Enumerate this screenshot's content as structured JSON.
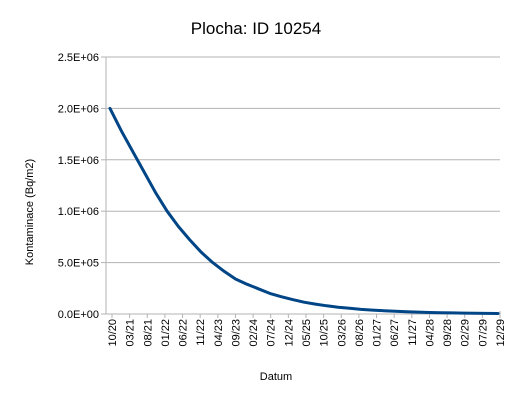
{
  "chart_data": {
    "type": "line",
    "title": "Plocha: ID 10254",
    "xlabel": "Datum",
    "ylabel": "Kontaminace (Bq/m2)",
    "ylim": [
      0,
      2500000
    ],
    "y_ticks": [
      "0.0E+00",
      "5.0E+05",
      "1.0E+06",
      "1.5E+06",
      "2.0E+06",
      "2.5E+06"
    ],
    "y_tick_values": [
      0,
      500000,
      1000000,
      1500000,
      2000000,
      2500000
    ],
    "x_ticks": [
      "10/20",
      "03/21",
      "08/21",
      "01/22",
      "06/22",
      "11/22",
      "04/23",
      "09/23",
      "02/24",
      "07/24",
      "12/24",
      "05/25",
      "10/25",
      "03/26",
      "08/26",
      "01/27",
      "06/27",
      "11/27",
      "04/28",
      "09/28",
      "02/29",
      "07/29",
      "12/29"
    ],
    "grid": "horizontal",
    "legend": "none",
    "line_color": "#004586",
    "series": [
      {
        "values": [
          2000000,
          1780000,
          1580000,
          1380000,
          1180000,
          1000000,
          850000,
          720000,
          600000,
          500000,
          415000,
          340000,
          290000,
          245000,
          200000,
          168000,
          140000,
          115000,
          96000,
          80000,
          66000,
          55000,
          45000,
          38000,
          32000,
          26000,
          22000,
          18000,
          15000,
          12500,
          10500,
          8700,
          7200,
          6000,
          5000
        ]
      }
    ]
  }
}
